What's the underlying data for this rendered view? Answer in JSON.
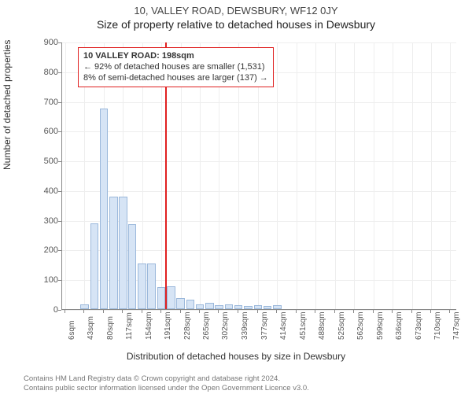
{
  "title_line1": "10, VALLEY ROAD, DEWSBURY, WF12 0JY",
  "title_line2": "Size of property relative to detached houses in Dewsbury",
  "y_axis_label": "Number of detached properties",
  "x_axis_label": "Distribution of detached houses by size in Dewsbury",
  "chart": {
    "type": "histogram",
    "background_color": "#ffffff",
    "grid_color": "#eeeeee",
    "axis_color": "#888888",
    "bar_fill": "#d6e4f5",
    "bar_stroke": "#9bb8db",
    "reference_line_color": "#e02020",
    "x_range": [
      0,
      760
    ],
    "y_range": [
      0,
      900
    ],
    "y_ticks": [
      0,
      100,
      200,
      300,
      400,
      500,
      600,
      700,
      800,
      900
    ],
    "x_tick_labels": [
      "6sqm",
      "43sqm",
      "80sqm",
      "117sqm",
      "154sqm",
      "191sqm",
      "228sqm",
      "265sqm",
      "302sqm",
      "339sqm",
      "377sqm",
      "414sqm",
      "451sqm",
      "488sqm",
      "525sqm",
      "562sqm",
      "599sqm",
      "636sqm",
      "673sqm",
      "710sqm",
      "747sqm"
    ],
    "x_tick_positions": [
      6,
      43,
      80,
      117,
      154,
      191,
      228,
      265,
      302,
      339,
      377,
      414,
      451,
      488,
      525,
      562,
      599,
      636,
      673,
      710,
      747
    ],
    "bars": [
      {
        "x_center": 43,
        "value": 15
      },
      {
        "x_center": 62,
        "value": 288
      },
      {
        "x_center": 80,
        "value": 675
      },
      {
        "x_center": 99,
        "value": 378
      },
      {
        "x_center": 117,
        "value": 378
      },
      {
        "x_center": 135,
        "value": 285
      },
      {
        "x_center": 154,
        "value": 153
      },
      {
        "x_center": 172,
        "value": 153
      },
      {
        "x_center": 191,
        "value": 75
      },
      {
        "x_center": 210,
        "value": 78
      },
      {
        "x_center": 228,
        "value": 38
      },
      {
        "x_center": 247,
        "value": 33
      },
      {
        "x_center": 265,
        "value": 17
      },
      {
        "x_center": 284,
        "value": 20
      },
      {
        "x_center": 302,
        "value": 14
      },
      {
        "x_center": 321,
        "value": 17
      },
      {
        "x_center": 339,
        "value": 14
      },
      {
        "x_center": 358,
        "value": 10
      },
      {
        "x_center": 377,
        "value": 14
      },
      {
        "x_center": 395,
        "value": 10
      },
      {
        "x_center": 414,
        "value": 14
      }
    ],
    "bar_width_data_units": 16,
    "reference_x": 198,
    "callout": {
      "header": "10 VALLEY ROAD: 198sqm",
      "line2": "← 92% of detached houses are smaller (1,531)",
      "line3": "8% of semi-detached houses are larger (137) →"
    }
  },
  "footer": {
    "line1": "Contains HM Land Registry data © Crown copyright and database right 2024.",
    "line2": "Contains public sector information licensed under the Open Government Licence v3.0."
  },
  "fonts": {
    "title_size_pt": 13,
    "axis_label_size_pt": 12,
    "tick_label_size_pt": 11,
    "callout_size_pt": 11,
    "footer_size_pt": 9.5
  }
}
